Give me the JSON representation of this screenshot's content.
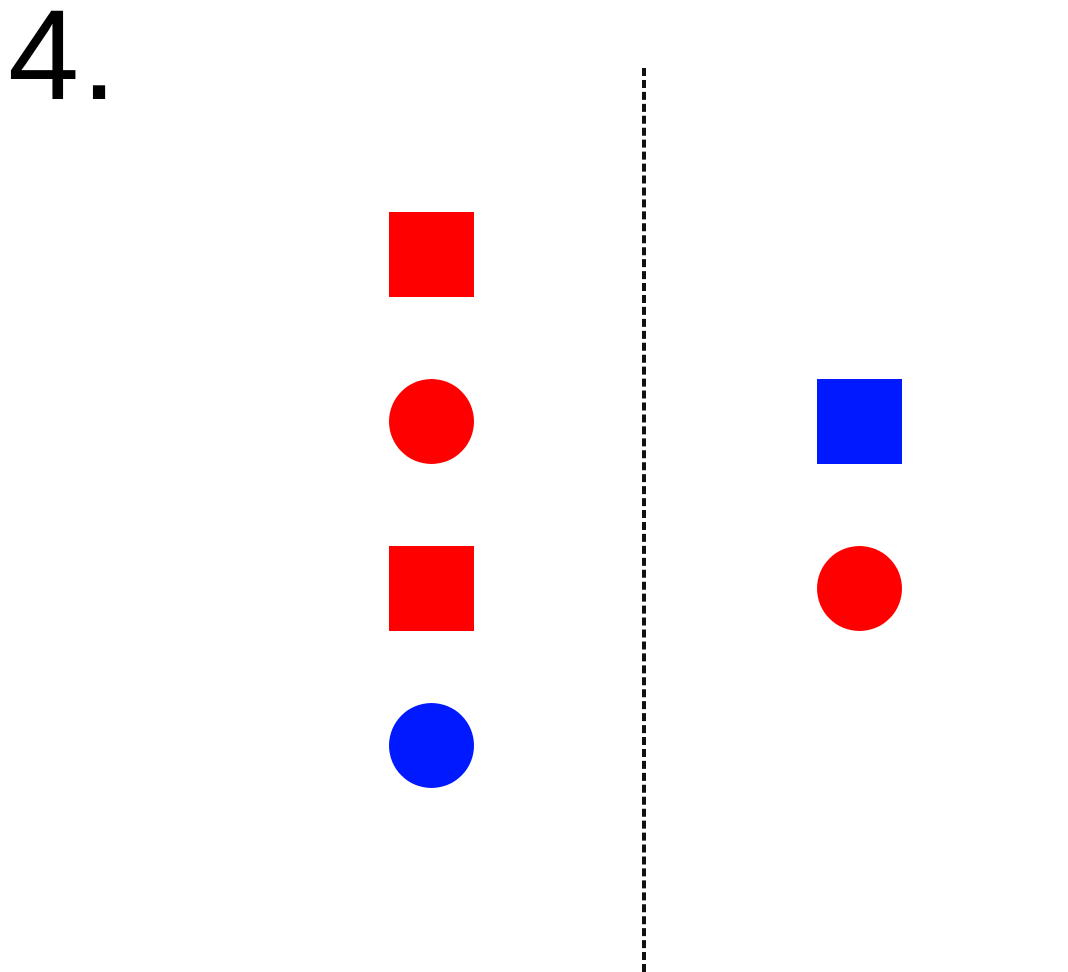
{
  "item_number": "4.",
  "divider_style": "dashed",
  "left_group": {
    "shapes": [
      {
        "shape": "square",
        "color": "#ff0000",
        "name": "red-square"
      },
      {
        "shape": "circle",
        "color": "#ff0000",
        "name": "red-circle"
      },
      {
        "shape": "square",
        "color": "#ff0000",
        "name": "red-square"
      },
      {
        "shape": "circle",
        "color": "#0019ff",
        "name": "blue-circle"
      }
    ]
  },
  "right_group": {
    "shapes": [
      {
        "shape": "square",
        "color": "#0019ff",
        "name": "blue-square"
      },
      {
        "shape": "circle",
        "color": "#ff0000",
        "name": "red-circle"
      }
    ]
  }
}
